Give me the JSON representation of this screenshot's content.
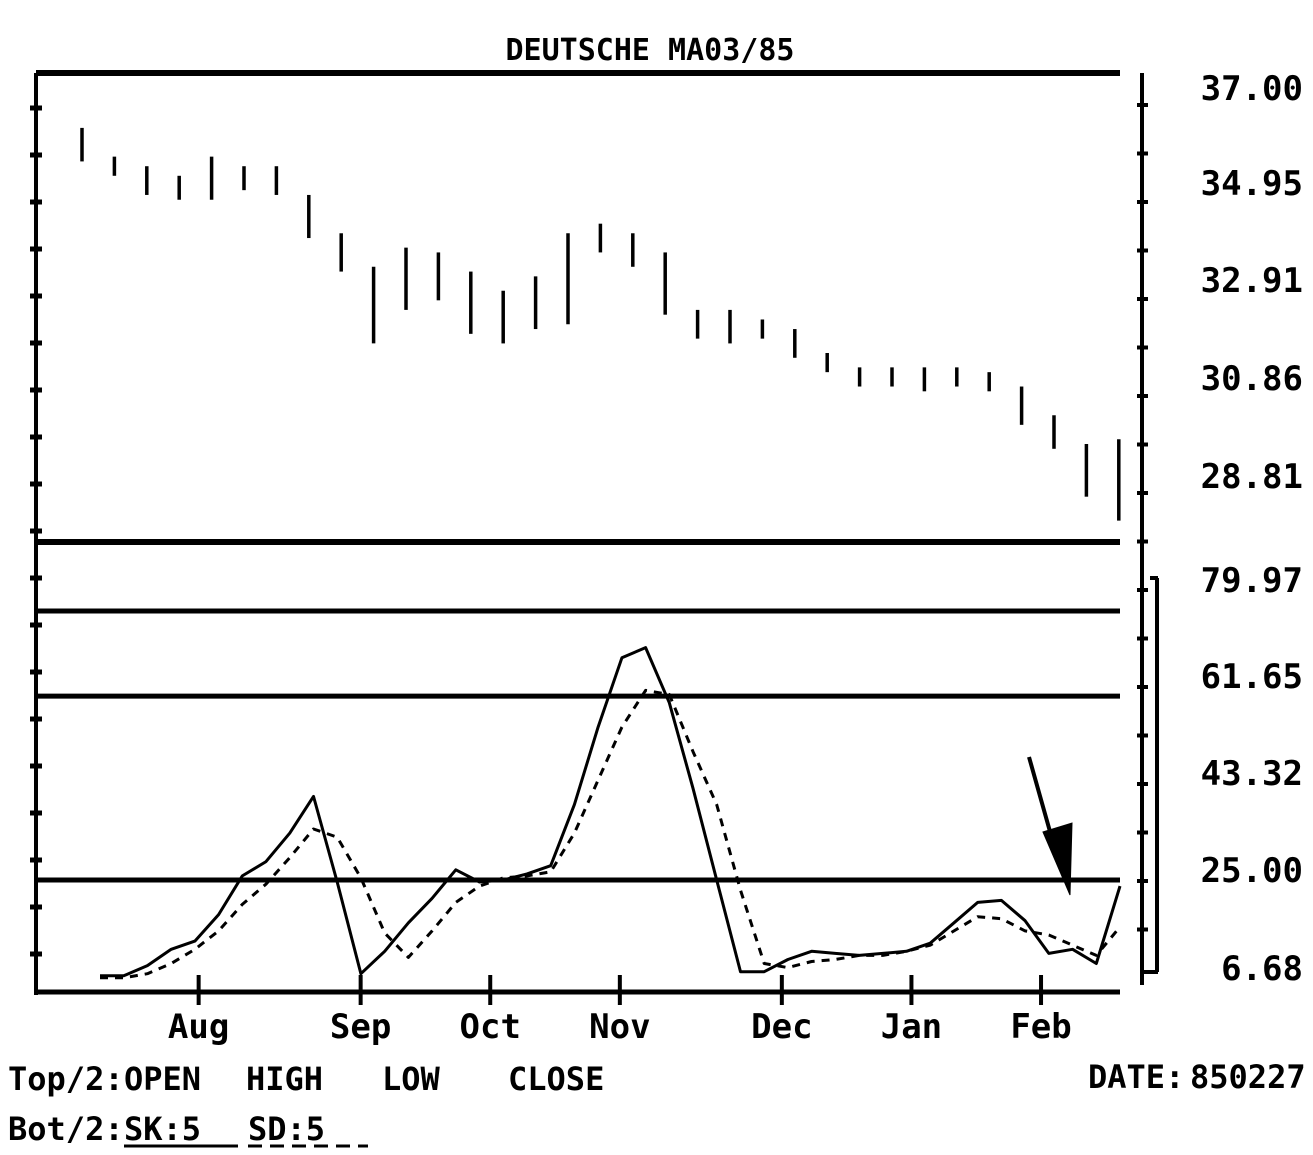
{
  "chart_data": [
    {
      "type": "line",
      "subtype": "ohlc-bar",
      "title": "DEUTSCHE MA03/85",
      "ylim": [
        27.8,
        37.3
      ],
      "y_ticks": [
        "37.00",
        "34.95",
        "32.91",
        "30.86",
        "28.81"
      ],
      "grid": false,
      "bars": [
        {
          "high": 36.3,
          "low": 35.6
        },
        {
          "high": 35.7,
          "low": 35.3
        },
        {
          "high": 35.5,
          "low": 34.9
        },
        {
          "high": 35.3,
          "low": 34.8
        },
        {
          "high": 35.7,
          "low": 34.8
        },
        {
          "high": 35.5,
          "low": 35.0
        },
        {
          "high": 35.5,
          "low": 34.9
        },
        {
          "high": 34.9,
          "low": 34.0
        },
        {
          "high": 34.1,
          "low": 33.3
        },
        {
          "high": 33.4,
          "low": 31.8
        },
        {
          "high": 33.8,
          "low": 32.5
        },
        {
          "high": 33.7,
          "low": 32.7
        },
        {
          "high": 33.3,
          "low": 32.0
        },
        {
          "high": 32.9,
          "low": 31.8
        },
        {
          "high": 33.2,
          "low": 32.1
        },
        {
          "high": 34.1,
          "low": 32.2
        },
        {
          "high": 34.3,
          "low": 33.7
        },
        {
          "high": 34.1,
          "low": 33.4
        },
        {
          "high": 33.7,
          "low": 32.4
        },
        {
          "high": 32.5,
          "low": 31.9
        },
        {
          "high": 32.5,
          "low": 31.8
        },
        {
          "high": 32.3,
          "low": 31.9
        },
        {
          "high": 32.1,
          "low": 31.5
        },
        {
          "high": 31.6,
          "low": 31.2
        },
        {
          "high": 31.3,
          "low": 30.9
        },
        {
          "high": 31.3,
          "low": 30.9
        },
        {
          "high": 31.3,
          "low": 30.8
        },
        {
          "high": 31.3,
          "low": 30.9
        },
        {
          "high": 31.2,
          "low": 30.8
        },
        {
          "high": 30.9,
          "low": 30.1
        },
        {
          "high": 30.3,
          "low": 29.6
        },
        {
          "high": 29.7,
          "low": 28.6
        },
        {
          "high": 29.8,
          "low": 28.1
        }
      ]
    },
    {
      "type": "line",
      "ylim": [
        0,
        105
      ],
      "y_ticks": [
        "79.97",
        "61.65",
        "43.32",
        "25.00",
        "6.68"
      ],
      "hlines": [
        92.5,
        71.6,
        26.5
      ],
      "x_ticks": [
        "Aug",
        "Sep",
        "Oct",
        "Nov",
        "Dec",
        "Jan",
        "Feb"
      ],
      "x_tick_index": [
        3.6,
        8.6,
        12.6,
        16.6,
        21.6,
        25.6,
        29.6
      ],
      "legend": "none",
      "series": [
        {
          "style": "solid",
          "values": [
            3.0,
            3.0,
            5.5,
            9.5,
            11.5,
            18.0,
            27.5,
            31.0,
            38.0,
            47.0,
            26.0,
            3.5,
            9.0,
            16.0,
            22.0,
            29.0,
            26.0,
            26.5,
            28.0,
            30.0,
            45.0,
            64.0,
            81.0,
            83.5,
            70.0,
            49.0,
            26.5,
            4.0,
            4.0,
            7.0,
            9.0,
            8.5,
            8.0,
            8.5,
            9.0,
            11.0,
            16.0,
            21.0,
            21.5,
            16.5,
            8.5,
            9.5,
            6.0,
            25.0
          ]
        },
        {
          "style": "dashed",
          "values": [
            2.5,
            2.5,
            3.5,
            6.0,
            9.5,
            14.0,
            20.5,
            25.5,
            32.0,
            39.0,
            37.0,
            27.0,
            13.5,
            7.5,
            14.0,
            21.0,
            25.0,
            27.0,
            27.5,
            28.5,
            38.0,
            51.0,
            64.0,
            73.0,
            72.0,
            58.0,
            45.0,
            24.0,
            6.0,
            5.0,
            6.5,
            7.0,
            8.0,
            8.0,
            9.0,
            10.5,
            14.0,
            17.5,
            17.0,
            14.0,
            13.0,
            10.5,
            8.0,
            15.0
          ]
        }
      ]
    }
  ],
  "footer": {
    "top_prefix": "Top/2:",
    "top_items": [
      "OPEN",
      "HIGH",
      "LOW",
      "CLOSE"
    ],
    "bot_prefix": "Bot/2:",
    "bot_items": [
      "SK:5",
      "SD:5"
    ],
    "date_label": "DATE:",
    "date_value": "850227"
  }
}
